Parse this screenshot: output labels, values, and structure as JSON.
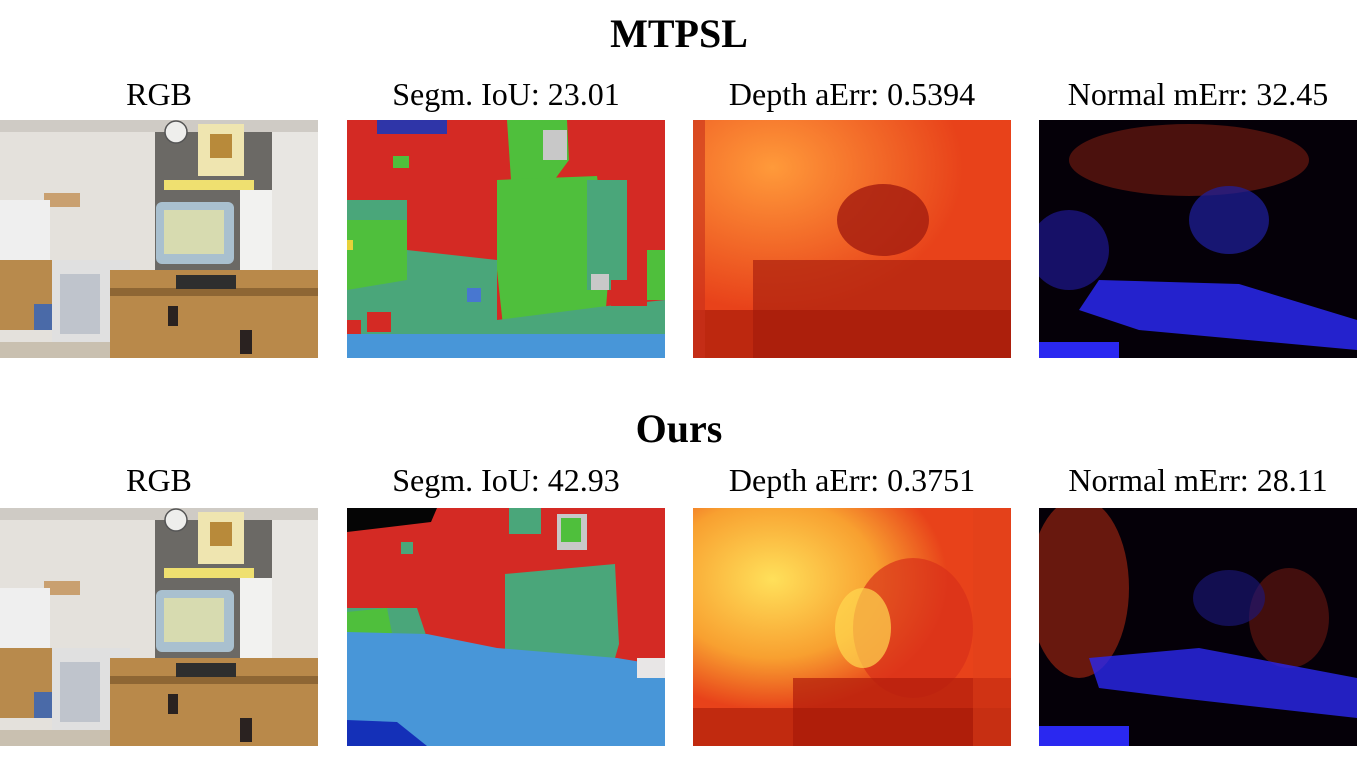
{
  "groups": [
    {
      "title": "MTPSL",
      "panels": [
        {
          "label": "RGB"
        },
        {
          "label": "Segm. IoU: 23.01"
        },
        {
          "label": "Depth aErr: 0.5394"
        },
        {
          "label": "Normal mErr: 32.45"
        }
      ]
    },
    {
      "title": "Ours",
      "panels": [
        {
          "label": "RGB"
        },
        {
          "label": "Segm. IoU: 42.93"
        },
        {
          "label": "Depth aErr: 0.3751"
        },
        {
          "label": "Normal mErr: 28.11"
        }
      ]
    }
  ],
  "colors": {
    "seg_red": "#d42a24",
    "seg_green": "#4fbf3c",
    "seg_teal": "#4aa67a",
    "seg_blue": "#4896d8",
    "depth_dark": "#a01808",
    "depth_mid": "#e8421a",
    "depth_bright": "#ffe05a",
    "normal_bg": "#050008",
    "normal_blue": "#2a28f0",
    "normal_red": "#a01c10"
  }
}
